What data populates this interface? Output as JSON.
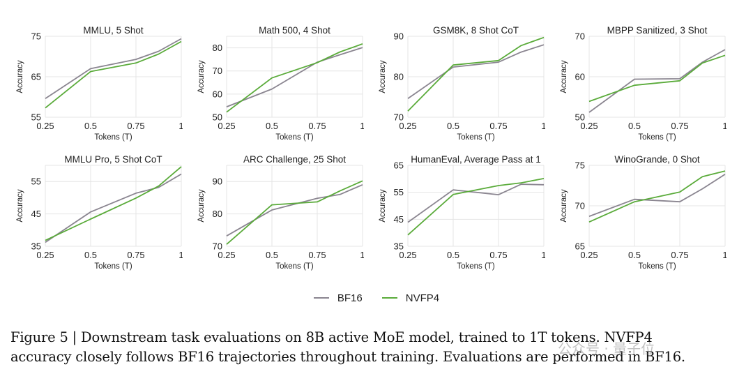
{
  "colors": {
    "bf16": "#8a8590",
    "nvfp4": "#5aab3a",
    "grid": "#e4e4e4",
    "text": "#222222"
  },
  "legend": {
    "items": [
      {
        "label": "BF16",
        "series": "bf16"
      },
      {
        "label": "NVFP4",
        "series": "nvfp4"
      }
    ]
  },
  "caption": {
    "line1": "Figure 5 | Downstream task evaluations on 8B active MoE model, trained to 1T tokens. NVFP4",
    "line2": "accuracy closely follows BF16 trajectories throughout training. Evaluations are performed in BF16."
  },
  "watermark": "公众号 · 量子位",
  "chart_data": [
    {
      "type": "line",
      "title": "MMLU, 5 Shot",
      "xlabel": "Tokens (T)",
      "ylabel": "Accuracy",
      "xlim": [
        0.25,
        1
      ],
      "xticks": [
        "0.25",
        "0.5",
        "0.75",
        "1"
      ],
      "ylim": [
        55,
        75
      ],
      "yticks": [
        55,
        65,
        75
      ],
      "x": [
        0.25,
        0.5,
        0.75,
        0.875,
        1.0
      ],
      "series": [
        {
          "name": "BF16",
          "values": [
            59.6,
            67.0,
            69.3,
            71.3,
            74.4
          ]
        },
        {
          "name": "NVFP4",
          "values": [
            57.3,
            66.3,
            68.4,
            70.6,
            73.7
          ]
        }
      ]
    },
    {
      "type": "line",
      "title": "Math 500, 4 Shot",
      "xlabel": "Tokens (T)",
      "ylabel": "Accuracy",
      "xlim": [
        0.25,
        1
      ],
      "xticks": [
        "0.25",
        "0.5",
        "0.75",
        "1"
      ],
      "ylim": [
        50,
        85
      ],
      "yticks": [
        50,
        60,
        70,
        80
      ],
      "x": [
        0.25,
        0.5,
        0.75,
        0.875,
        1.0
      ],
      "series": [
        {
          "name": "BF16",
          "values": [
            54.5,
            62.2,
            73.8,
            77.0,
            80.1
          ]
        },
        {
          "name": "NVFP4",
          "values": [
            52.2,
            67.0,
            73.6,
            78.2,
            81.7
          ]
        }
      ]
    },
    {
      "type": "line",
      "title": "GSM8K, 8 Shot CoT",
      "xlabel": "Tokens (T)",
      "ylabel": "Accuracy",
      "xlim": [
        0.25,
        1
      ],
      "xticks": [
        "0.25",
        "0.5",
        "0.75",
        "1"
      ],
      "ylim": [
        70,
        90
      ],
      "yticks": [
        70,
        80,
        90
      ],
      "x": [
        0.25,
        0.5,
        0.75,
        0.875,
        1.0
      ],
      "series": [
        {
          "name": "BF16",
          "values": [
            74.6,
            82.4,
            83.6,
            86.1,
            87.9
          ]
        },
        {
          "name": "NVFP4",
          "values": [
            71.5,
            82.9,
            84.0,
            87.7,
            89.7
          ]
        }
      ]
    },
    {
      "type": "line",
      "title": "MBPP Sanitized, 3 Shot",
      "xlabel": "Tokens (T)",
      "ylabel": "Accuracy",
      "xlim": [
        0.25,
        1
      ],
      "xticks": [
        "0.25",
        "0.5",
        "0.75",
        "1"
      ],
      "ylim": [
        50,
        70
      ],
      "yticks": [
        50,
        60,
        70
      ],
      "x": [
        0.25,
        0.5,
        0.75,
        0.875,
        1.0
      ],
      "series": [
        {
          "name": "BF16",
          "values": [
            51.2,
            59.4,
            59.5,
            63.6,
            66.7
          ]
        },
        {
          "name": "NVFP4",
          "values": [
            53.9,
            57.9,
            59.0,
            63.4,
            65.3
          ]
        }
      ]
    },
    {
      "type": "line",
      "title": "MMLU Pro, 5 Shot CoT",
      "xlabel": "Tokens (T)",
      "ylabel": "Accuracy",
      "xlim": [
        0.25,
        1
      ],
      "xticks": [
        "0.25",
        "0.5",
        "0.75",
        "1"
      ],
      "ylim": [
        35,
        60
      ],
      "yticks": [
        35,
        45,
        55
      ],
      "x": [
        0.25,
        0.5,
        0.75,
        0.875,
        1.0
      ],
      "series": [
        {
          "name": "BF16",
          "values": [
            36.2,
            45.6,
            51.4,
            53.2,
            57.3
          ]
        },
        {
          "name": "NVFP4",
          "values": [
            36.8,
            43.4,
            49.9,
            53.6,
            59.6
          ]
        }
      ]
    },
    {
      "type": "line",
      "title": "ARC Challenge, 25 Shot",
      "xlabel": "Tokens (T)",
      "ylabel": "Accuracy",
      "xlim": [
        0.25,
        1
      ],
      "xticks": [
        "0.25",
        "0.5",
        "0.75",
        "1"
      ],
      "ylim": [
        70,
        95
      ],
      "yticks": [
        70,
        80,
        90
      ],
      "x": [
        0.25,
        0.5,
        0.75,
        0.875,
        1.0
      ],
      "series": [
        {
          "name": "BF16",
          "values": [
            73.2,
            81.2,
            84.8,
            86.0,
            89.0
          ]
        },
        {
          "name": "NVFP4",
          "values": [
            70.6,
            82.8,
            83.7,
            87.1,
            90.2
          ]
        }
      ]
    },
    {
      "type": "line",
      "title": "HumanEval, Average Pass at 1",
      "xlabel": "Tokens (T)",
      "ylabel": "Accuracy",
      "xlim": [
        0.25,
        1
      ],
      "xticks": [
        "0.25",
        "0.5",
        "0.75",
        "1"
      ],
      "ylim": [
        35,
        65
      ],
      "yticks": [
        35,
        45,
        55,
        65
      ],
      "x": [
        0.25,
        0.5,
        0.75,
        0.875,
        1.0
      ],
      "series": [
        {
          "name": "BF16",
          "values": [
            43.9,
            55.9,
            54.1,
            58.0,
            57.8
          ]
        },
        {
          "name": "NVFP4",
          "values": [
            39.2,
            54.2,
            57.5,
            58.5,
            60.1
          ]
        }
      ]
    },
    {
      "type": "line",
      "title": "WinoGrande, 0 Shot",
      "xlabel": "Tokens (T)",
      "ylabel": "Accuracy",
      "xlim": [
        0.25,
        1
      ],
      "xticks": [
        "0.25",
        "0.5",
        "0.75",
        "1"
      ],
      "ylim": [
        65,
        75
      ],
      "yticks": [
        65,
        70,
        75
      ],
      "x": [
        0.25,
        0.5,
        0.75,
        0.875,
        1.0
      ],
      "series": [
        {
          "name": "BF16",
          "values": [
            68.7,
            70.8,
            70.5,
            72.1,
            73.9
          ]
        },
        {
          "name": "NVFP4",
          "values": [
            68.0,
            70.5,
            71.7,
            73.6,
            74.3
          ]
        }
      ]
    }
  ]
}
